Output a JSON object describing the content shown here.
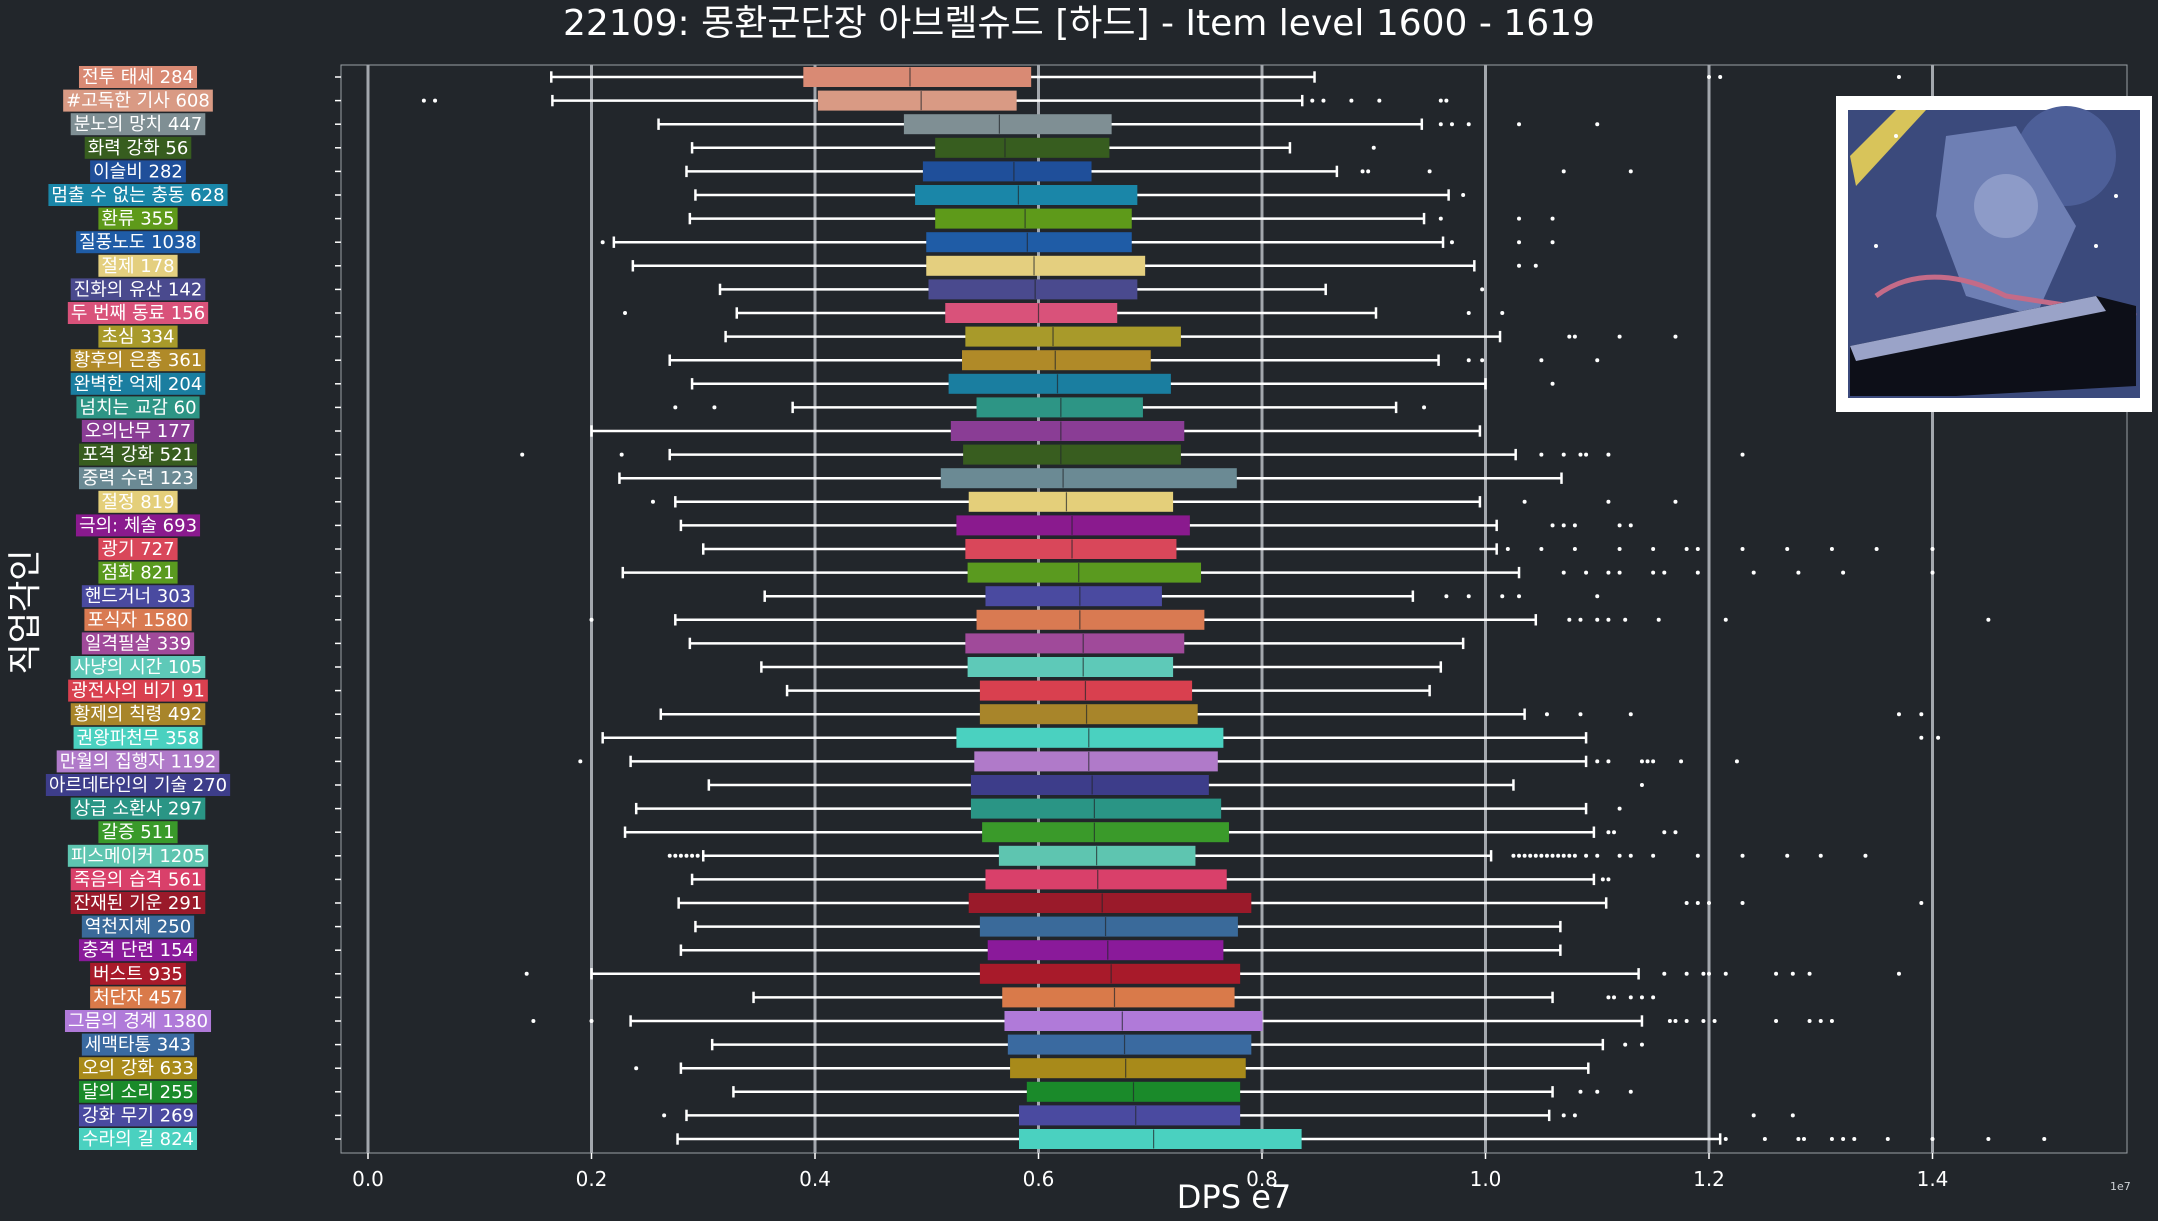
{
  "chart_data": {
    "type": "boxplot",
    "title": "22109: 몽환군단장 아브렐슈드 [하드] - Item level 1600 - 1619",
    "xlabel": "DPS e7",
    "ylabel": "직업각인",
    "x_scale_label": "1e7",
    "xlim": [
      -0.025,
      1.575
    ],
    "xticks": [
      "0.0",
      "0.2",
      "0.4",
      "0.6",
      "0.8",
      "1.0",
      "1.2",
      "1.4"
    ],
    "xtick_values": [
      0.0,
      0.2,
      0.4,
      0.6,
      0.8,
      1.0,
      1.2,
      1.4
    ],
    "grid": "vertical",
    "categories": [
      {
        "label": "전투 태세 284",
        "color": "#d98a74",
        "whisker_low": 0.164,
        "q1": 0.39,
        "median": 0.485,
        "q3": 0.593,
        "whisker_high": 0.847,
        "outliers": [
          1.2,
          1.21,
          1.37
        ]
      },
      {
        "label": "#고독한 기사 608",
        "color": "#d99a84",
        "whisker_low": 0.165,
        "q1": 0.403,
        "median": 0.495,
        "q3": 0.58,
        "whisker_high": 0.836,
        "outliers": [
          0.05,
          0.06,
          0.845,
          0.855,
          0.88,
          0.905,
          0.96,
          0.965
        ]
      },
      {
        "label": "분노의 망치 447",
        "color": "#7f8f94",
        "whisker_low": 0.26,
        "q1": 0.48,
        "median": 0.565,
        "q3": 0.665,
        "whisker_high": 0.943,
        "outliers": [
          0.96,
          0.97,
          0.985,
          1.03,
          1.1
        ]
      },
      {
        "label": "화력 강화 56",
        "color": "#375d1f",
        "whisker_low": 0.29,
        "q1": 0.508,
        "median": 0.57,
        "q3": 0.663,
        "whisker_high": 0.825,
        "outliers": [
          0.9
        ]
      },
      {
        "label": "이슬비 282",
        "color": "#1f4f9a",
        "whisker_low": 0.285,
        "q1": 0.497,
        "median": 0.578,
        "q3": 0.647,
        "whisker_high": 0.867,
        "outliers": [
          0.89,
          0.895,
          0.95,
          1.07,
          1.13
        ]
      },
      {
        "label": "멈출 수 없는 충동 628",
        "color": "#1a86a8",
        "whisker_low": 0.293,
        "q1": 0.49,
        "median": 0.582,
        "q3": 0.688,
        "whisker_high": 0.967,
        "outliers": [
          0.98
        ]
      },
      {
        "label": "환류 355",
        "color": "#5e9a1a",
        "whisker_low": 0.288,
        "q1": 0.508,
        "median": 0.588,
        "q3": 0.683,
        "whisker_high": 0.945,
        "outliers": [
          0.96,
          1.03,
          1.06
        ]
      },
      {
        "label": "질풍노도 1038",
        "color": "#1f5ca6",
        "whisker_low": 0.22,
        "q1": 0.5,
        "median": 0.59,
        "q3": 0.683,
        "whisker_high": 0.962,
        "outliers": [
          0.21,
          0.97,
          1.03,
          1.06
        ]
      },
      {
        "label": "절제 178",
        "color": "#e4cf7f",
        "whisker_low": 0.237,
        "q1": 0.5,
        "median": 0.596,
        "q3": 0.695,
        "whisker_high": 0.99,
        "outliers": [
          1.03,
          1.045
        ]
      },
      {
        "label": "진화의 유산 142",
        "color": "#4a4a8e",
        "whisker_low": 0.315,
        "q1": 0.502,
        "median": 0.597,
        "q3": 0.688,
        "whisker_high": 0.857,
        "outliers": [
          0.997
        ]
      },
      {
        "label": "두 번째 동료 156",
        "color": "#d9527a",
        "whisker_low": 0.33,
        "q1": 0.517,
        "median": 0.6,
        "q3": 0.67,
        "whisker_high": 0.902,
        "outliers": [
          0.23,
          0.985,
          1.015
        ]
      },
      {
        "label": "초심 334",
        "color": "#a89a2a",
        "whisker_low": 0.32,
        "q1": 0.535,
        "median": 0.613,
        "q3": 0.727,
        "whisker_high": 1.013,
        "outliers": [
          1.075,
          1.08,
          1.12,
          1.17
        ]
      },
      {
        "label": "황후의 은총 361",
        "color": "#b08a28",
        "whisker_low": 0.27,
        "q1": 0.532,
        "median": 0.615,
        "q3": 0.7,
        "whisker_high": 0.958,
        "outliers": [
          0.985,
          0.997,
          1.05,
          1.1
        ]
      },
      {
        "label": "완벽한 억제 204",
        "color": "#1a7ea0",
        "whisker_low": 0.29,
        "q1": 0.52,
        "median": 0.617,
        "q3": 0.718,
        "whisker_high": 1.0,
        "outliers": [
          1.06
        ]
      },
      {
        "label": "넘치는 교감 60",
        "color": "#2d9585",
        "whisker_low": 0.38,
        "q1": 0.545,
        "median": 0.62,
        "q3": 0.693,
        "whisker_high": 0.92,
        "outliers": [
          0.275,
          0.31,
          0.945
        ]
      },
      {
        "label": "오의난무 177",
        "color": "#8a3d95",
        "whisker_low": 0.2,
        "q1": 0.522,
        "median": 0.62,
        "q3": 0.73,
        "whisker_high": 0.995,
        "outliers": []
      },
      {
        "label": "포격 강화 521",
        "color": "#385d1f",
        "whisker_low": 0.27,
        "q1": 0.533,
        "median": 0.62,
        "q3": 0.727,
        "whisker_high": 1.027,
        "outliers": [
          0.138,
          0.227,
          1.05,
          1.07,
          1.085,
          1.09,
          1.11,
          1.23
        ]
      },
      {
        "label": "중력 수련 123",
        "color": "#6b8a94",
        "whisker_low": 0.225,
        "q1": 0.513,
        "median": 0.622,
        "q3": 0.777,
        "whisker_high": 1.068,
        "outliers": []
      },
      {
        "label": "절정 819",
        "color": "#e4cf7a",
        "whisker_low": 0.275,
        "q1": 0.538,
        "median": 0.625,
        "q3": 0.72,
        "whisker_high": 0.995,
        "outliers": [
          0.255,
          1.035,
          1.11,
          1.17
        ]
      },
      {
        "label": "극의: 체술 693",
        "color": "#8a1a8e",
        "whisker_low": 0.28,
        "q1": 0.527,
        "median": 0.63,
        "q3": 0.735,
        "whisker_high": 1.01,
        "outliers": [
          1.06,
          1.07,
          1.08,
          1.12,
          1.13
        ]
      },
      {
        "label": "광기 727",
        "color": "#d9475a",
        "whisker_low": 0.3,
        "q1": 0.535,
        "median": 0.63,
        "q3": 0.723,
        "whisker_high": 1.01,
        "outliers": [
          1.02,
          1.05,
          1.08,
          1.12,
          1.15,
          1.18,
          1.19,
          1.23,
          1.27,
          1.31,
          1.35,
          1.4
        ]
      },
      {
        "label": "점화 821",
        "color": "#5a9a1f",
        "whisker_low": 0.228,
        "q1": 0.537,
        "median": 0.636,
        "q3": 0.745,
        "whisker_high": 1.03,
        "outliers": [
          1.07,
          1.09,
          1.11,
          1.12,
          1.15,
          1.16,
          1.19,
          1.24,
          1.28,
          1.32,
          1.4
        ]
      },
      {
        "label": "핸드거너 303",
        "color": "#4a4aa0",
        "whisker_low": 0.355,
        "q1": 0.553,
        "median": 0.637,
        "q3": 0.71,
        "whisker_high": 0.935,
        "outliers": [
          0.965,
          0.985,
          1.015,
          1.03,
          1.1
        ]
      },
      {
        "label": "포식자 1580",
        "color": "#d97a52",
        "whisker_low": 0.275,
        "q1": 0.545,
        "median": 0.637,
        "q3": 0.748,
        "whisker_high": 1.045,
        "outliers": [
          0.2,
          1.075,
          1.085,
          1.1,
          1.11,
          1.125,
          1.155,
          1.215,
          1.45
        ]
      },
      {
        "label": "일격필살 339",
        "color": "#a04a9a",
        "whisker_low": 0.288,
        "q1": 0.535,
        "median": 0.64,
        "q3": 0.73,
        "whisker_high": 0.98,
        "outliers": []
      },
      {
        "label": "사냥의 시간 105",
        "color": "#5ec9b8",
        "whisker_low": 0.352,
        "q1": 0.537,
        "median": 0.64,
        "q3": 0.72,
        "whisker_high": 0.96,
        "outliers": []
      },
      {
        "label": "광전사의 비기 91",
        "color": "#d9404f",
        "whisker_low": 0.375,
        "q1": 0.548,
        "median": 0.642,
        "q3": 0.737,
        "whisker_high": 0.95,
        "outliers": []
      },
      {
        "label": "황제의 칙령 492",
        "color": "#a8852a",
        "whisker_low": 0.262,
        "q1": 0.548,
        "median": 0.643,
        "q3": 0.742,
        "whisker_high": 1.035,
        "outliers": [
          1.055,
          1.085,
          1.13,
          1.37,
          1.39
        ]
      },
      {
        "label": "권왕파천무 358",
        "color": "#4ad1c0",
        "whisker_low": 0.21,
        "q1": 0.527,
        "median": 0.645,
        "q3": 0.765,
        "whisker_high": 1.09,
        "outliers": [
          1.39,
          1.405
        ]
      },
      {
        "label": "만월의 집행자 1192",
        "color": "#b07ac9",
        "whisker_low": 0.235,
        "q1": 0.543,
        "median": 0.645,
        "q3": 0.76,
        "whisker_high": 1.09,
        "outliers": [
          0.19,
          1.1,
          1.11,
          1.14,
          1.145,
          1.15,
          1.175,
          1.225
        ]
      },
      {
        "label": "아르데타인의 기술 270",
        "color": "#3d3d8a",
        "whisker_low": 0.305,
        "q1": 0.54,
        "median": 0.648,
        "q3": 0.752,
        "whisker_high": 1.025,
        "outliers": [
          1.14
        ]
      },
      {
        "label": "상급 소환사 297",
        "color": "#2a9585",
        "whisker_low": 0.24,
        "q1": 0.54,
        "median": 0.65,
        "q3": 0.763,
        "whisker_high": 1.09,
        "outliers": [
          1.12
        ]
      },
      {
        "label": "갈증 511",
        "color": "#3a9a2a",
        "whisker_low": 0.23,
        "q1": 0.55,
        "median": 0.65,
        "q3": 0.77,
        "whisker_high": 1.097,
        "outliers": [
          1.11,
          1.115,
          1.16,
          1.17
        ]
      },
      {
        "label": "피스메이커 1205",
        "color": "#5ec5b0",
        "whisker_low": 0.3,
        "q1": 0.565,
        "median": 0.652,
        "q3": 0.74,
        "whisker_high": 1.005,
        "outliers": [
          0.27,
          0.275,
          0.28,
          0.285,
          0.29,
          0.295,
          1.025,
          1.03,
          1.035,
          1.04,
          1.045,
          1.05,
          1.055,
          1.06,
          1.065,
          1.07,
          1.075,
          1.08,
          1.09,
          1.1,
          1.12,
          1.13,
          1.15,
          1.19,
          1.23,
          1.27,
          1.3,
          1.34
        ]
      },
      {
        "label": "죽음의 습격 561",
        "color": "#d9406a",
        "whisker_low": 0.29,
        "q1": 0.553,
        "median": 0.653,
        "q3": 0.768,
        "whisker_high": 1.097,
        "outliers": [
          1.105,
          1.11
        ]
      },
      {
        "label": "잔재된 기운 291",
        "color": "#9a1a2a",
        "whisker_low": 0.278,
        "q1": 0.538,
        "median": 0.657,
        "q3": 0.79,
        "whisker_high": 1.108,
        "outliers": [
          1.18,
          1.19,
          1.2,
          1.23,
          1.39
        ]
      },
      {
        "label": "역천지체 250",
        "color": "#3a6a9a",
        "whisker_low": 0.293,
        "q1": 0.548,
        "median": 0.66,
        "q3": 0.778,
        "whisker_high": 1.067,
        "outliers": []
      },
      {
        "label": "충격 단련 154",
        "color": "#8a1a9a",
        "whisker_low": 0.28,
        "q1": 0.555,
        "median": 0.662,
        "q3": 0.765,
        "whisker_high": 1.067,
        "outliers": []
      },
      {
        "label": "버스트 935",
        "color": "#a81a2a",
        "whisker_low": 0.2,
        "q1": 0.548,
        "median": 0.665,
        "q3": 0.78,
        "whisker_high": 1.137,
        "outliers": [
          0.142,
          1.16,
          1.18,
          1.195,
          1.2,
          1.215,
          1.26,
          1.275,
          1.29,
          1.37
        ]
      },
      {
        "label": "처단자 457",
        "color": "#d97a4a",
        "whisker_low": 0.345,
        "q1": 0.568,
        "median": 0.668,
        "q3": 0.775,
        "whisker_high": 1.06,
        "outliers": [
          1.11,
          1.115,
          1.13,
          1.14,
          1.15
        ]
      },
      {
        "label": "그믐의 경계 1380",
        "color": "#b07ad9",
        "whisker_low": 0.235,
        "q1": 0.57,
        "median": 0.675,
        "q3": 0.8,
        "whisker_high": 1.14,
        "outliers": [
          0.148,
          0.2,
          1.165,
          1.17,
          1.18,
          1.195,
          1.205,
          1.26,
          1.29,
          1.3,
          1.31
        ]
      },
      {
        "label": "세맥타통 343",
        "color": "#3a6aa0",
        "whisker_low": 0.308,
        "q1": 0.573,
        "median": 0.677,
        "q3": 0.79,
        "whisker_high": 1.105,
        "outliers": [
          1.125,
          1.14
        ]
      },
      {
        "label": "오의 강화 633",
        "color": "#a88a1a",
        "whisker_low": 0.28,
        "q1": 0.575,
        "median": 0.678,
        "q3": 0.785,
        "whisker_high": 1.092,
        "outliers": [
          0.24
        ]
      },
      {
        "label": "달의 소리 255",
        "color": "#1a8a2a",
        "whisker_low": 0.327,
        "q1": 0.59,
        "median": 0.685,
        "q3": 0.78,
        "whisker_high": 1.06,
        "outliers": [
          1.085,
          1.1,
          1.13
        ]
      },
      {
        "label": "강화 무기 269",
        "color": "#4a4aa0",
        "whisker_low": 0.285,
        "q1": 0.583,
        "median": 0.687,
        "q3": 0.78,
        "whisker_high": 1.057,
        "outliers": [
          0.265,
          1.07,
          1.08,
          1.24,
          1.275
        ]
      },
      {
        "label": "수라의 길 824",
        "color": "#4ad1c0",
        "whisker_low": 0.277,
        "q1": 0.583,
        "median": 0.703,
        "q3": 0.835,
        "whisker_high": 1.21,
        "outliers": [
          1.215,
          1.25,
          1.28,
          1.285,
          1.31,
          1.32,
          1.33,
          1.36,
          1.4,
          1.45,
          1.5
        ]
      }
    ]
  }
}
